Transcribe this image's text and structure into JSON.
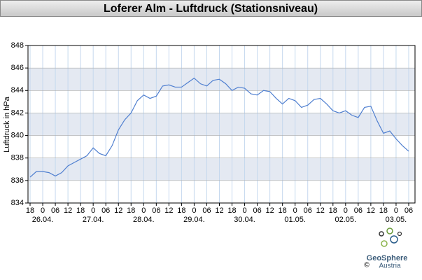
{
  "chart_data": {
    "type": "line",
    "title": "Loferer Alm - Luftdruck (Stationsniveau)",
    "y_label": "Luftdruck in hPa",
    "color": "#4f7fd0",
    "x": [
      "25.04. 18",
      "25.04. 21",
      "26.04. 00",
      "26.04. 03",
      "26.04. 06",
      "26.04. 09",
      "26.04. 12",
      "26.04. 15",
      "26.04. 18",
      "26.04. 21",
      "27.04. 00",
      "27.04. 03",
      "27.04. 06",
      "27.04. 09",
      "27.04. 12",
      "27.04. 15",
      "27.04. 18",
      "27.04. 21",
      "28.04. 00",
      "28.04. 03",
      "28.04. 06",
      "28.04. 09",
      "28.04. 12",
      "28.04. 15",
      "28.04. 18",
      "28.04. 21",
      "29.04. 00",
      "29.04. 03",
      "29.04. 06",
      "29.04. 09",
      "29.04. 12",
      "29.04. 15",
      "29.04. 18",
      "29.04. 21",
      "30.04. 00",
      "30.04. 03",
      "30.04. 06",
      "30.04. 09",
      "30.04. 12",
      "30.04. 15",
      "30.04. 18",
      "30.04. 21",
      "01.05. 00",
      "01.05. 03",
      "01.05. 06",
      "01.05. 09",
      "01.05. 12",
      "01.05. 15",
      "01.05. 18",
      "01.05. 21",
      "02.05. 00",
      "02.05. 03",
      "02.05. 06",
      "02.05. 09",
      "02.05. 12",
      "02.05. 15",
      "02.05. 18",
      "02.05. 21",
      "03.05. 00",
      "03.05. 03",
      "03.05. 06"
    ],
    "values": [
      836.3,
      836.8,
      836.8,
      836.7,
      836.4,
      836.7,
      837.3,
      837.6,
      837.9,
      838.2,
      838.9,
      838.4,
      838.2,
      839.1,
      840.5,
      841.4,
      842.0,
      843.1,
      843.6,
      843.3,
      843.5,
      844.4,
      844.5,
      844.3,
      844.3,
      844.7,
      845.1,
      844.6,
      844.4,
      844.9,
      845.0,
      844.6,
      844.0,
      844.3,
      844.2,
      843.7,
      843.6,
      844.0,
      843.9,
      843.3,
      842.8,
      843.3,
      843.1,
      842.5,
      842.7,
      843.2,
      843.3,
      842.8,
      842.2,
      842.0,
      842.2,
      841.8,
      841.6,
      842.5,
      842.6,
      841.3,
      840.2,
      840.4,
      839.7,
      839.1,
      838.6
    ],
    "xlim": [
      "25.04. 17",
      "03.05. 09"
    ],
    "xticks": [
      {
        "value": "25.04. 18",
        "label": "18"
      },
      {
        "value": "26.04. 00",
        "label": "0"
      },
      {
        "value": "26.04. 06",
        "label": "06"
      },
      {
        "value": "26.04. 12",
        "label": "12"
      },
      {
        "value": "26.04. 18",
        "label": "18"
      },
      {
        "value": "27.04. 00",
        "label": "0"
      },
      {
        "value": "27.04. 06",
        "label": "06"
      },
      {
        "value": "27.04. 12",
        "label": "12"
      },
      {
        "value": "27.04. 18",
        "label": "18"
      },
      {
        "value": "28.04. 00",
        "label": "0"
      },
      {
        "value": "28.04. 06",
        "label": "06"
      },
      {
        "value": "28.04. 12",
        "label": "12"
      },
      {
        "value": "28.04. 18",
        "label": "18"
      },
      {
        "value": "29.04. 00",
        "label": "0"
      },
      {
        "value": "29.04. 06",
        "label": "06"
      },
      {
        "value": "29.04. 12",
        "label": "12"
      },
      {
        "value": "29.04. 18",
        "label": "18"
      },
      {
        "value": "30.04. 00",
        "label": "0"
      },
      {
        "value": "30.04. 06",
        "label": "06"
      },
      {
        "value": "30.04. 12",
        "label": "12"
      },
      {
        "value": "30.04. 18",
        "label": "18"
      },
      {
        "value": "01.05. 00",
        "label": "0"
      },
      {
        "value": "01.05. 06",
        "label": "06"
      },
      {
        "value": "01.05. 12",
        "label": "12"
      },
      {
        "value": "01.05. 18",
        "label": "18"
      },
      {
        "value": "02.05. 00",
        "label": "0"
      },
      {
        "value": "02.05. 06",
        "label": "06"
      },
      {
        "value": "02.05. 12",
        "label": "12"
      },
      {
        "value": "02.05. 18",
        "label": "18"
      },
      {
        "value": "03.05. 00",
        "label": "0"
      },
      {
        "value": "03.05. 06",
        "label": "06"
      }
    ],
    "date_labels": [
      {
        "value": "26.04. 00",
        "label": "26.04."
      },
      {
        "value": "27.04. 00",
        "label": "27.04."
      },
      {
        "value": "28.04. 00",
        "label": "28.04."
      },
      {
        "value": "29.04. 00",
        "label": "29.04."
      },
      {
        "value": "30.04. 00",
        "label": "30.04."
      },
      {
        "value": "01.05. 00",
        "label": "01.05."
      },
      {
        "value": "02.05. 00",
        "label": "02.05."
      },
      {
        "value": "03.05. 00",
        "label": "03.05."
      }
    ],
    "ylim": [
      834,
      848
    ],
    "yticks": [
      834,
      836,
      838,
      840,
      842,
      844,
      846,
      848
    ],
    "grid": true,
    "band_color": "#e4e9f2",
    "copyright": "©",
    "logo_name": "GeoSphere",
    "logo_sub": "Austria"
  }
}
